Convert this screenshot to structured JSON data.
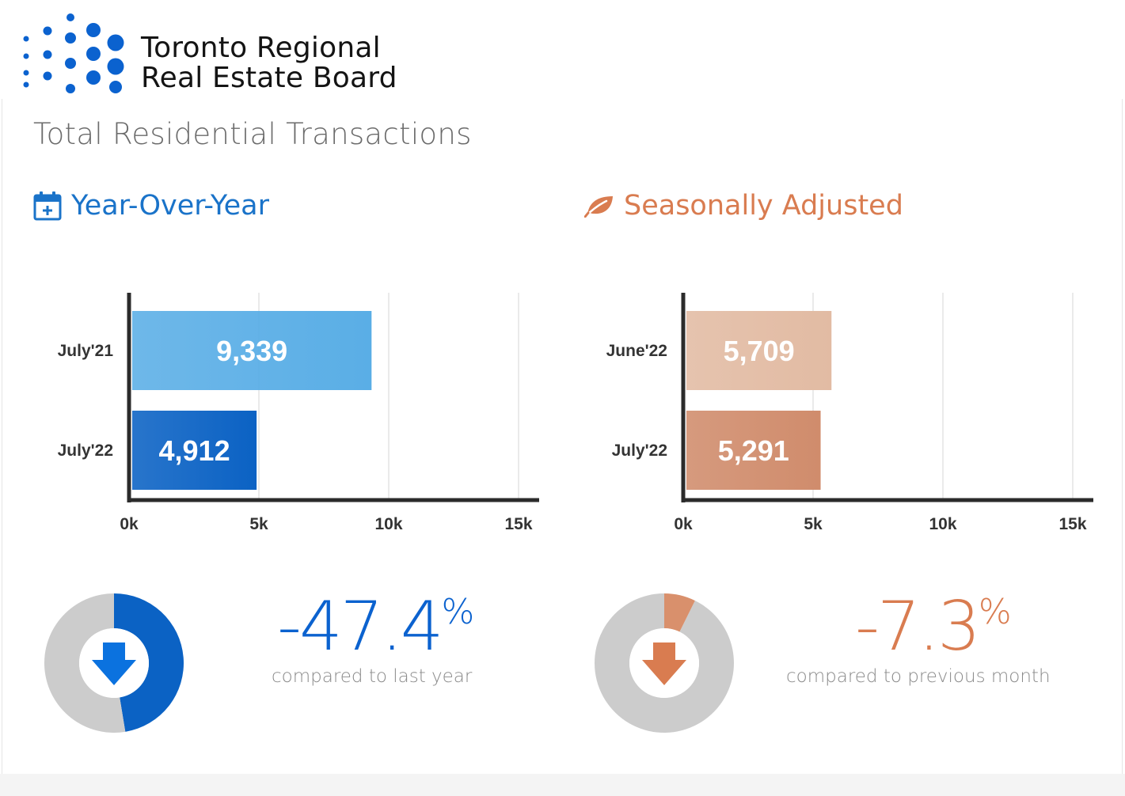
{
  "logo": {
    "line1": "Toronto Regional",
    "line2": "Real Estate Board",
    "color": "#0b62cf"
  },
  "page_title": "Total Residential Transactions",
  "sections": {
    "yoy": {
      "title": "Year-Over-Year",
      "icon": "calendar-plus-icon",
      "color": "#1a73c9"
    },
    "sa": {
      "title": "Seasonally Adjusted",
      "icon": "leaf-icon",
      "color": "#d97c50"
    }
  },
  "chart_data": [
    {
      "type": "bar",
      "orientation": "horizontal",
      "categories": [
        "July'21",
        "July'22"
      ],
      "values": [
        9339,
        4912
      ],
      "value_labels": [
        "9,339",
        "4,912"
      ],
      "bar_colors": [
        "#5aaee6",
        "#0b62c4"
      ],
      "xlim": [
        0,
        15000
      ],
      "xticks": [
        0,
        5000,
        10000,
        15000
      ],
      "xtick_labels": [
        "0k",
        "5k",
        "10k",
        "15k"
      ],
      "grid": true
    },
    {
      "type": "bar",
      "orientation": "horizontal",
      "categories": [
        "June'22",
        "July'22"
      ],
      "values": [
        5709,
        5291
      ],
      "value_labels": [
        "5,709",
        "5,291"
      ],
      "bar_colors": [
        "#e2bba3",
        "#d08c6c"
      ],
      "xlim": [
        0,
        15000
      ],
      "xticks": [
        0,
        5000,
        10000,
        15000
      ],
      "xtick_labels": [
        "0k",
        "5k",
        "10k",
        "15k"
      ],
      "grid": true
    },
    {
      "type": "pie",
      "variant": "donut",
      "values": [
        47.4,
        52.6
      ],
      "colors": [
        "#0b62c4",
        "#cccccc"
      ],
      "center_icon": "arrow-down-icon"
    },
    {
      "type": "pie",
      "variant": "donut",
      "values": [
        7.3,
        92.7
      ],
      "colors": [
        "#d9906c",
        "#cccccc"
      ],
      "center_icon": "arrow-down-icon"
    }
  ],
  "stats": {
    "yoy": {
      "value": "-47.4",
      "unit": "%",
      "caption": "compared to last year"
    },
    "sa": {
      "value": "-7.3",
      "unit": "%",
      "caption": "compared to previous month"
    }
  }
}
